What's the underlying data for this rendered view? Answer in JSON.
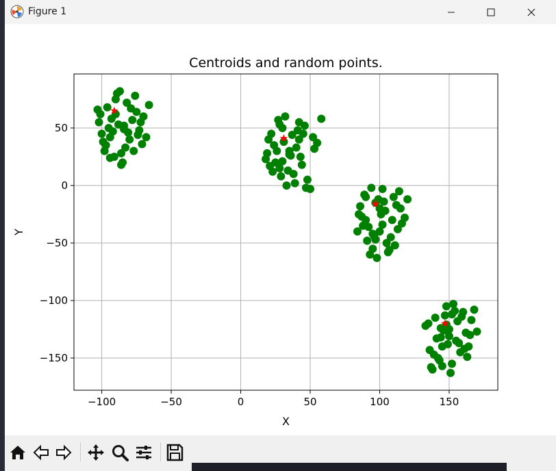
{
  "window": {
    "title": "Figure 1"
  },
  "chart_data": {
    "type": "scatter",
    "title": "Centroids and random points.",
    "xlabel": "X",
    "ylabel": "Y",
    "xlim": [
      -120,
      185
    ],
    "ylim": [
      -178,
      97
    ],
    "grid": true,
    "xticks": [
      -100,
      -50,
      0,
      50,
      100,
      150
    ],
    "yticks": [
      -150,
      -100,
      -50,
      0,
      50
    ],
    "xtick_labels": [
      "−100",
      "−50",
      "0",
      "50",
      "100",
      "150"
    ],
    "ytick_labels": [
      "−150",
      "−100",
      "−50",
      "0",
      "50"
    ],
    "series": [
      {
        "marker": "circle",
        "color": "#008000",
        "clusters": [
          {
            "x": [
              -90,
              -75,
              -102,
              -84,
              -94,
              -80,
              -98,
              -86,
              -73,
              -70,
              -96,
              -89,
              -92,
              -83,
              -78,
              -101,
              -66,
              -68,
              -99,
              -85,
              -91,
              -95,
              -76,
              -81,
              -97,
              -93,
              -87,
              -74,
              -71,
              -79,
              -88,
              -82,
              -100,
              -77,
              -103,
              -72,
              -86,
              -94,
              -90,
              -84
            ],
            "y": [
              75,
              64,
              55,
              52,
              42,
              40,
              30,
              28,
              48,
              60,
              68,
              80,
              47,
              33,
              57,
              62,
              70,
              42,
              38,
              20,
              25,
              50,
              78,
              46,
              35,
              58,
              82,
              44,
              36,
              67,
              53,
              72,
              45,
              30,
              66,
              55,
              18,
              24,
              62,
              49
            ]
          },
          {
            "x": [
              30,
              20,
              42,
              35,
              25,
              45,
              55,
              18,
              38,
              28,
              48,
              33,
              22,
              40,
              52,
              27,
              36,
              44,
              24,
              32,
              50,
              19,
              41,
              29,
              46,
              34,
              58,
              26,
              39,
              31,
              21,
              43,
              37,
              53,
              28,
              47,
              23,
              35,
              42,
              30
            ],
            "y": [
              50,
              40,
              55,
              30,
              20,
              45,
              37,
              23,
              10,
              15,
              5,
              0,
              45,
              33,
              42,
              57,
              26,
              18,
              35,
              60,
              -3,
              28,
              48,
              8,
              52,
              13,
              58,
              30,
              2,
              38,
              17,
              25,
              44,
              32,
              53,
              -2,
              12,
              27,
              40,
              21
            ]
          },
          {
            "x": [
              97,
              85,
              110,
              100,
              90,
              115,
              105,
              95,
              88,
              118,
              102,
              108,
              93,
              113,
              99,
              86,
              120,
              96,
              104,
              91,
              116,
              89,
              107,
              101,
              94,
              111,
              98,
              92,
              103,
              84,
              109,
              97,
              114,
              87,
              106,
              100,
              95,
              112,
              90,
              102
            ],
            "y": [
              -15,
              -25,
              -10,
              -40,
              -30,
              -20,
              -50,
              -55,
              -35,
              -28,
              -3,
              -45,
              -60,
              -38,
              -12,
              -18,
              -12,
              -44,
              -22,
              -48,
              -33,
              -8,
              -56,
              -25,
              -2,
              -52,
              -63,
              -36,
              -14,
              -40,
              -30,
              -47,
              -5,
              -27,
              -58,
              -20,
              -42,
              -17,
              -10,
              -34
            ]
          },
          {
            "x": [
              148,
              140,
              160,
              150,
              135,
              165,
              145,
              155,
              142,
              158,
              138,
              152,
              168,
              147,
              162,
              133,
              156,
              144,
              170,
              149,
              139,
              161,
              153,
              143,
              166,
              137,
              151,
              157,
              146,
              141,
              163,
              154,
              148,
              136,
              159,
              145,
              150,
              144,
              164,
              152
            ],
            "y": [
              -105,
              -115,
              -110,
              -125,
              -120,
              -130,
              -140,
              -135,
              -150,
              -145,
              -160,
              -155,
              -108,
              -113,
              -128,
              -122,
              -118,
              -132,
              -127,
              -138,
              -147,
              -142,
              -103,
              -152,
              -117,
              -158,
              -163,
              -137,
              -126,
              -133,
              -149,
              -109,
              -121,
              -143,
              -114,
              -157,
              -131,
              -124,
              -140,
              -112
            ]
          }
        ]
      },
      {
        "marker": "star",
        "color": "#ff0000",
        "x": [
          -91,
          31,
          97,
          147
        ],
        "y": [
          65,
          41,
          -16,
          -120
        ]
      }
    ]
  },
  "toolbar": {
    "buttons": [
      "home-icon",
      "back-icon",
      "forward-icon",
      "pan-icon",
      "zoom-icon",
      "configure-icon",
      "save-icon"
    ]
  }
}
